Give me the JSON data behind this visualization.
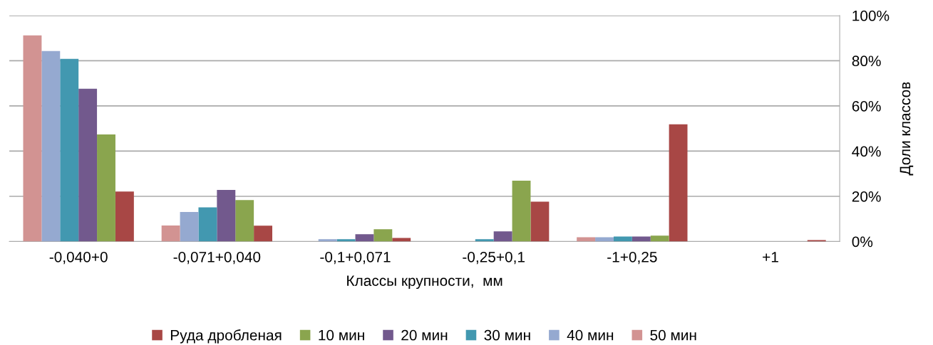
{
  "chart_data": {
    "type": "bar",
    "categories": [
      "-0,040+0",
      "-0,071+0,040",
      "-0,1+0,071",
      "-0,25+0,1",
      "-1+0,25",
      "+1"
    ],
    "series": [
      {
        "name": "Руда дробленая",
        "color": "#a84745",
        "values": [
          22.1,
          7.0,
          1.6,
          17.6,
          51.9,
          0.6
        ]
      },
      {
        "name": "10 мин",
        "color": "#8aa54e",
        "values": [
          47.4,
          18.3,
          5.4,
          26.9,
          2.6,
          0
        ]
      },
      {
        "name": "20 мин",
        "color": "#72598d",
        "values": [
          67.6,
          22.8,
          3.2,
          4.5,
          2.2,
          0
        ]
      },
      {
        "name": "30 мин",
        "color": "#4298b0",
        "values": [
          80.8,
          15.1,
          1.0,
          1.0,
          2.2,
          0
        ]
      },
      {
        "name": "40 мин",
        "color": "#95a9d0",
        "values": [
          84.3,
          13.1,
          1.0,
          0,
          1.9,
          0
        ]
      },
      {
        "name": "50 мин",
        "color": "#d29392",
        "values": [
          91.2,
          7.1,
          0,
          0,
          1.9,
          0
        ]
      }
    ],
    "xlabel": "Классы крупности,  мм",
    "ylabel": "Доли классов",
    "ylim": [
      0,
      100
    ],
    "yticks": [
      {
        "value": 0,
        "label": "0%"
      },
      {
        "value": 20,
        "label": "20%"
      },
      {
        "value": 40,
        "label": "40%"
      },
      {
        "value": 60,
        "label": "60%"
      },
      {
        "value": 80,
        "label": "80%"
      },
      {
        "value": 100,
        "label": "100%"
      }
    ],
    "grid": "y",
    "legend": "bottom"
  }
}
